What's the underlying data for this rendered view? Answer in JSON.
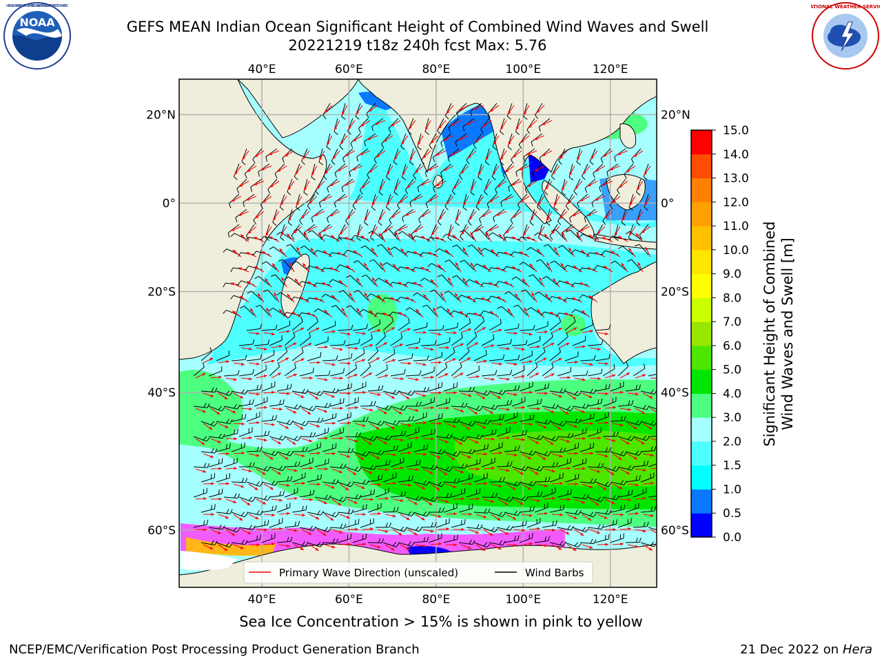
{
  "header": {
    "title_line1": "GEFS MEAN Indian Ocean Significant Height of Combined Wind Waves and Swell",
    "title_line2": "20221219 t18z 240h fcst   Max: 5.76"
  },
  "logos": {
    "left": {
      "name": "noaa-logo",
      "text": "NOAA",
      "ring_text": "NATIONAL OCEANIC AND ATMOSPHERIC ADMINISTRATION · U.S. DEPARTMENT OF COMMERCE"
    },
    "right": {
      "name": "nws-logo",
      "ring_text": "NATIONAL WEATHER SERVICE"
    }
  },
  "map": {
    "lon_ticks": [
      "40°E",
      "60°E",
      "80°E",
      "100°E",
      "120°E"
    ],
    "lat_ticks": [
      "20°N",
      "0°",
      "20°S",
      "40°S",
      "60°S"
    ],
    "colors": {
      "land": "#efeedc",
      "coast": "#000000",
      "grid": "#b0b0b0",
      "wave_arrow": "#ff0000",
      "barb": "#000000"
    },
    "legend": {
      "items": [
        {
          "label": "Primary Wave Direction (unscaled)",
          "color": "#ff0000"
        },
        {
          "label": "Wind Barbs",
          "color": "#000000"
        }
      ]
    }
  },
  "colorbar": {
    "label_line1": "Significant Height of Combined",
    "label_line2": "Wind Waves and Swell [m]",
    "ticks": [
      "0.0",
      "0.5",
      "1.0",
      "1.5",
      "2.0",
      "3.0",
      "4.0",
      "5.0",
      "6.0",
      "7.0",
      "8.0",
      "9.0",
      "10.0",
      "11.0",
      "12.0",
      "13.0",
      "14.0",
      "15.0"
    ],
    "colors": [
      "#0000ff",
      "#0a78ff",
      "#00ffff",
      "#4dffff",
      "#a6ffff",
      "#4dff80",
      "#00e600",
      "#4ce600",
      "#99e600",
      "#ccff00",
      "#ffff00",
      "#ffe600",
      "#ffc000",
      "#ffa000",
      "#ff8000",
      "#ff4d00",
      "#ff0000"
    ]
  },
  "footer": {
    "note": "Sea Ice Concentration > 15% is shown in pink to yellow",
    "left": "NCEP/EMC/Verification Post Processing Product Generation Branch",
    "date": "21 Dec 2022 on",
    "host": "Hera"
  }
}
